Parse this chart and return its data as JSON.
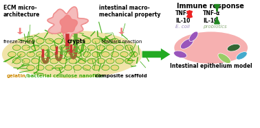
{
  "bg_color": "#ffffff",
  "title_immune": "Immune response",
  "label_ecm": "ECM micro-\narchitecture",
  "label_intestinal": "intestinal macro-\nmechanical property",
  "label_crypts": "crypts",
  "label_freeze": "freeze-drying",
  "label_maillard": "Maillard reaction",
  "label_scaffold_gelatin": "gelatin",
  "label_scaffold_bcn": "/bacterial cellulose nanofiber",
  "label_scaffold_end": " composite scaffold",
  "label_epithelium": "Intestinal epithelium model",
  "label_ecoli": "E. coli",
  "label_probiotics": "probiotics",
  "tnf_label": "TNF-α",
  "il10_label": "IL-10",
  "pink_light": "#f5b8b8",
  "pink_medium": "#f08080",
  "pink_outline": "#f09090",
  "green_fiber": "#3aaa10",
  "green_arrow": "#22aa22",
  "beige_scaffold": "#f0e0a0",
  "beige_cell": "#e8d878",
  "red_arrow_color": "#ee2222",
  "green_dark_arrow": "#228822",
  "purple_ecoli": "#9955bb",
  "green_bacteria1": "#99cc66",
  "green_bacteria2": "#336633",
  "cyan_bacteria": "#44aacc",
  "salmon_ellipse": "#f5a8a8",
  "crypt_red": "#cc3333",
  "crypt_green_stripe": "#66aa33"
}
